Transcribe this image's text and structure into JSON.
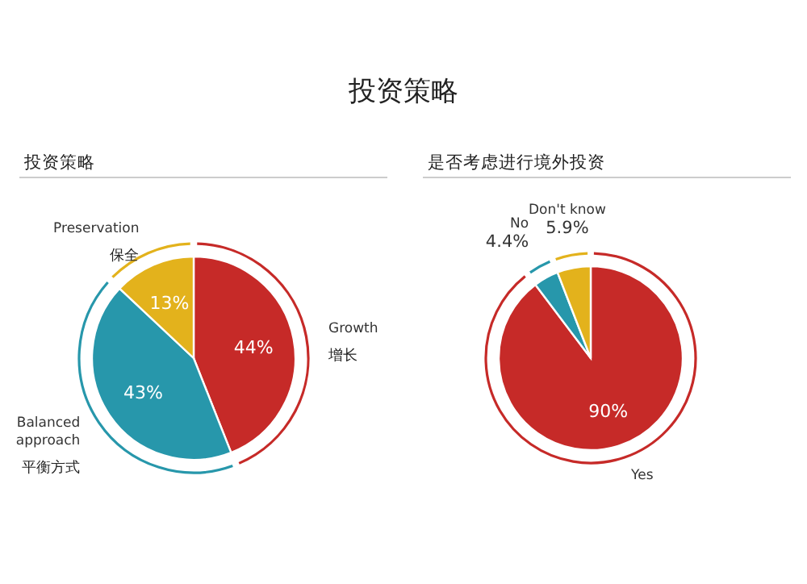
{
  "chart_data": [
    {
      "type": "pie",
      "title": "投资策略",
      "categories": [
        "Growth",
        "Balanced approach",
        "Preservation"
      ],
      "values": [
        44,
        43,
        13
      ],
      "colors": [
        "#c62a28",
        "#2797ab",
        "#e3b21c"
      ],
      "value_labels": [
        "44%",
        "43%",
        "13%"
      ],
      "annotations": [
        "投资策略",
        "增长",
        "平衡方式",
        "保全"
      ]
    },
    {
      "type": "pie",
      "title": "是否考虑进行境外投资",
      "categories": [
        "Yes",
        "No",
        "Don't know"
      ],
      "values": [
        90,
        4.4,
        5.9
      ],
      "colors": [
        "#c62a28",
        "#2797ab",
        "#e3b21c"
      ],
      "value_labels": [
        "90%",
        "4.4%",
        "5.9%"
      ]
    }
  ]
}
